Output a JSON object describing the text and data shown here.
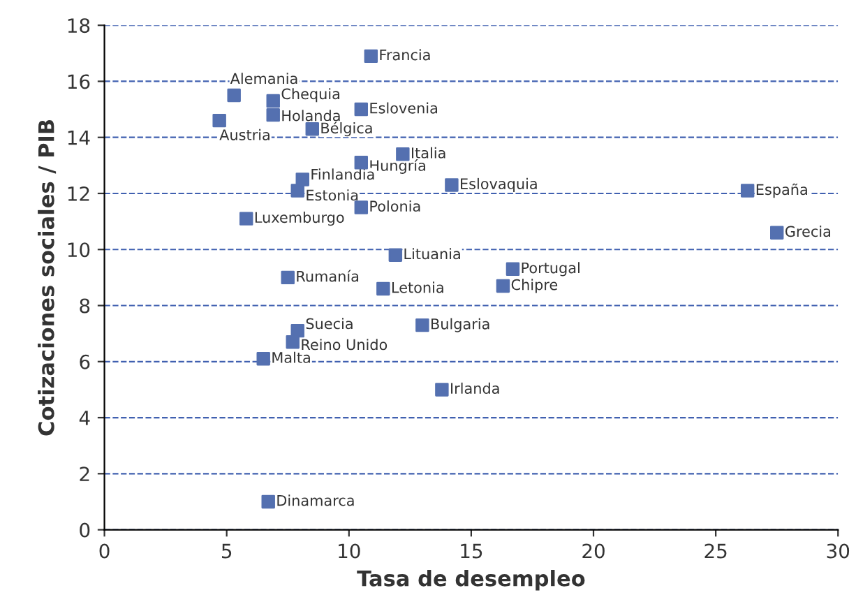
{
  "chart_data": {
    "type": "scatter",
    "xlabel": "Tasa de desempleo",
    "ylabel": "Cotizaciones sociales / PIB",
    "x": [
      10.9,
      5.3,
      6.9,
      10.5,
      4.7,
      6.9,
      8.5,
      12.2,
      10.5,
      8.1,
      14.2,
      26.3,
      7.9,
      10.5,
      5.8,
      27.5,
      11.9,
      16.7,
      7.5,
      16.3,
      11.4,
      13.0,
      7.9,
      7.7,
      6.5,
      13.8,
      6.7
    ],
    "series": [
      {
        "color": "#5470b0",
        "values": [
          16.9,
          15.5,
          15.3,
          15.0,
          14.6,
          14.8,
          14.3,
          13.4,
          13.1,
          12.5,
          12.3,
          12.1,
          12.1,
          11.5,
          11.1,
          10.6,
          9.8,
          9.3,
          9.0,
          8.7,
          8.6,
          7.3,
          7.1,
          6.7,
          6.1,
          5.0,
          1.0
        ]
      }
    ],
    "annotations": [
      {
        "text": "Francia",
        "x": 10.9,
        "y": 16.9
      },
      {
        "text": "Alemania",
        "x": 5.3,
        "y": 15.5
      },
      {
        "text": "Chequia",
        "x": 6.9,
        "y": 15.3
      },
      {
        "text": "Eslovenia",
        "x": 10.5,
        "y": 15.0
      },
      {
        "text": "Austria",
        "x": 4.7,
        "y": 14.6
      },
      {
        "text": "Holanda",
        "x": 6.9,
        "y": 14.8
      },
      {
        "text": "Bélgica",
        "x": 8.5,
        "y": 14.3
      },
      {
        "text": "Italia",
        "x": 12.2,
        "y": 13.4
      },
      {
        "text": "Hungría",
        "x": 10.5,
        "y": 13.1
      },
      {
        "text": "Finlandia",
        "x": 8.1,
        "y": 12.5
      },
      {
        "text": "Eslovaquia",
        "x": 14.2,
        "y": 12.3
      },
      {
        "text": "España",
        "x": 26.3,
        "y": 12.1
      },
      {
        "text": "Estonia",
        "x": 7.9,
        "y": 12.1
      },
      {
        "text": "Polonia",
        "x": 10.5,
        "y": 11.5
      },
      {
        "text": "Luxemburgo",
        "x": 5.8,
        "y": 11.1
      },
      {
        "text": "Grecia",
        "x": 27.5,
        "y": 10.6
      },
      {
        "text": "Lituania",
        "x": 11.9,
        "y": 9.8
      },
      {
        "text": "Portugal",
        "x": 16.7,
        "y": 9.3
      },
      {
        "text": "Rumanía",
        "x": 7.5,
        "y": 9.0
      },
      {
        "text": "Chipre",
        "x": 16.3,
        "y": 8.7
      },
      {
        "text": "Letonia",
        "x": 11.4,
        "y": 8.6
      },
      {
        "text": "Bulgaria",
        "x": 13.0,
        "y": 7.3
      },
      {
        "text": "Suecia",
        "x": 7.9,
        "y": 7.1
      },
      {
        "text": "Reino Unido",
        "x": 7.7,
        "y": 6.7
      },
      {
        "text": "Malta",
        "x": 6.5,
        "y": 6.1
      },
      {
        "text": "Irlanda",
        "x": 13.8,
        "y": 5.0
      },
      {
        "text": "Dinamarca",
        "x": 6.7,
        "y": 1.0
      }
    ],
    "xlim": [
      0,
      30
    ],
    "xticks": [
      0,
      5,
      10,
      15,
      20,
      25,
      30
    ],
    "ylim": [
      0,
      18
    ],
    "yticks": [
      0,
      2,
      4,
      6,
      8,
      10,
      12,
      14,
      16,
      18
    ],
    "grid": "y",
    "marker": "square",
    "legend": false
  }
}
